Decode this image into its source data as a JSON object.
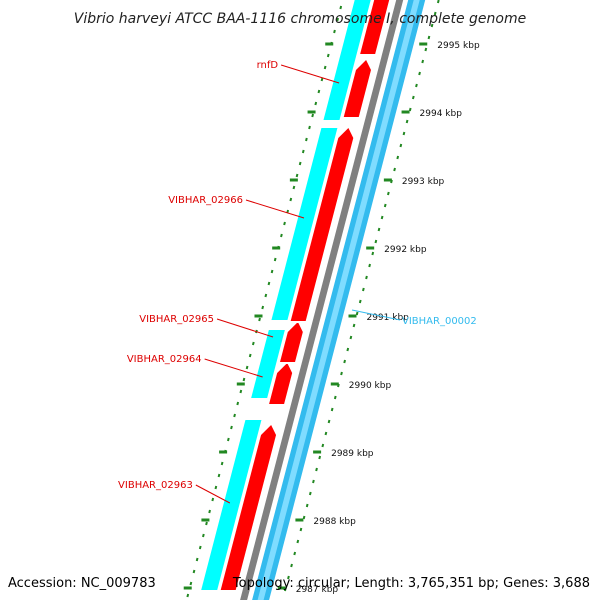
{
  "title": "Vibrio harveyi ATCC BAA-1116 chromosome I, complete genome",
  "accession": "Accession: NC_009783",
  "summary": "Topology: circular; Length: 3,765,351 bp; Genes: 3,688",
  "colors": {
    "forward_cds": "#00ffff",
    "forward_gene": "#ff0000",
    "backbone": "#808080",
    "reverse_track": "#33bbee",
    "reverse_label": "#33bbee",
    "forward_label": "#dd0000",
    "tick": "#228822"
  },
  "ticks": [
    {
      "label": "2995 kbp"
    },
    {
      "label": "2994 kbp"
    },
    {
      "label": "2993 kbp"
    },
    {
      "label": "2992 kbp"
    },
    {
      "label": "2991 kbp"
    },
    {
      "label": "2990 kbp"
    },
    {
      "label": "2989 kbp"
    },
    {
      "label": "2988 kbp"
    },
    {
      "label": "2987 kbp"
    }
  ],
  "genes": [
    {
      "label": "rnfD",
      "strand": "forward"
    },
    {
      "label": "VIBHAR_02966",
      "strand": "forward"
    },
    {
      "label": "VIBHAR_02965",
      "strand": "forward"
    },
    {
      "label": "VIBHAR_02964",
      "strand": "forward"
    },
    {
      "label": "VIBHAR_02963",
      "strand": "forward"
    },
    {
      "label": "VIBHAR_00002",
      "strand": "reverse"
    }
  ]
}
